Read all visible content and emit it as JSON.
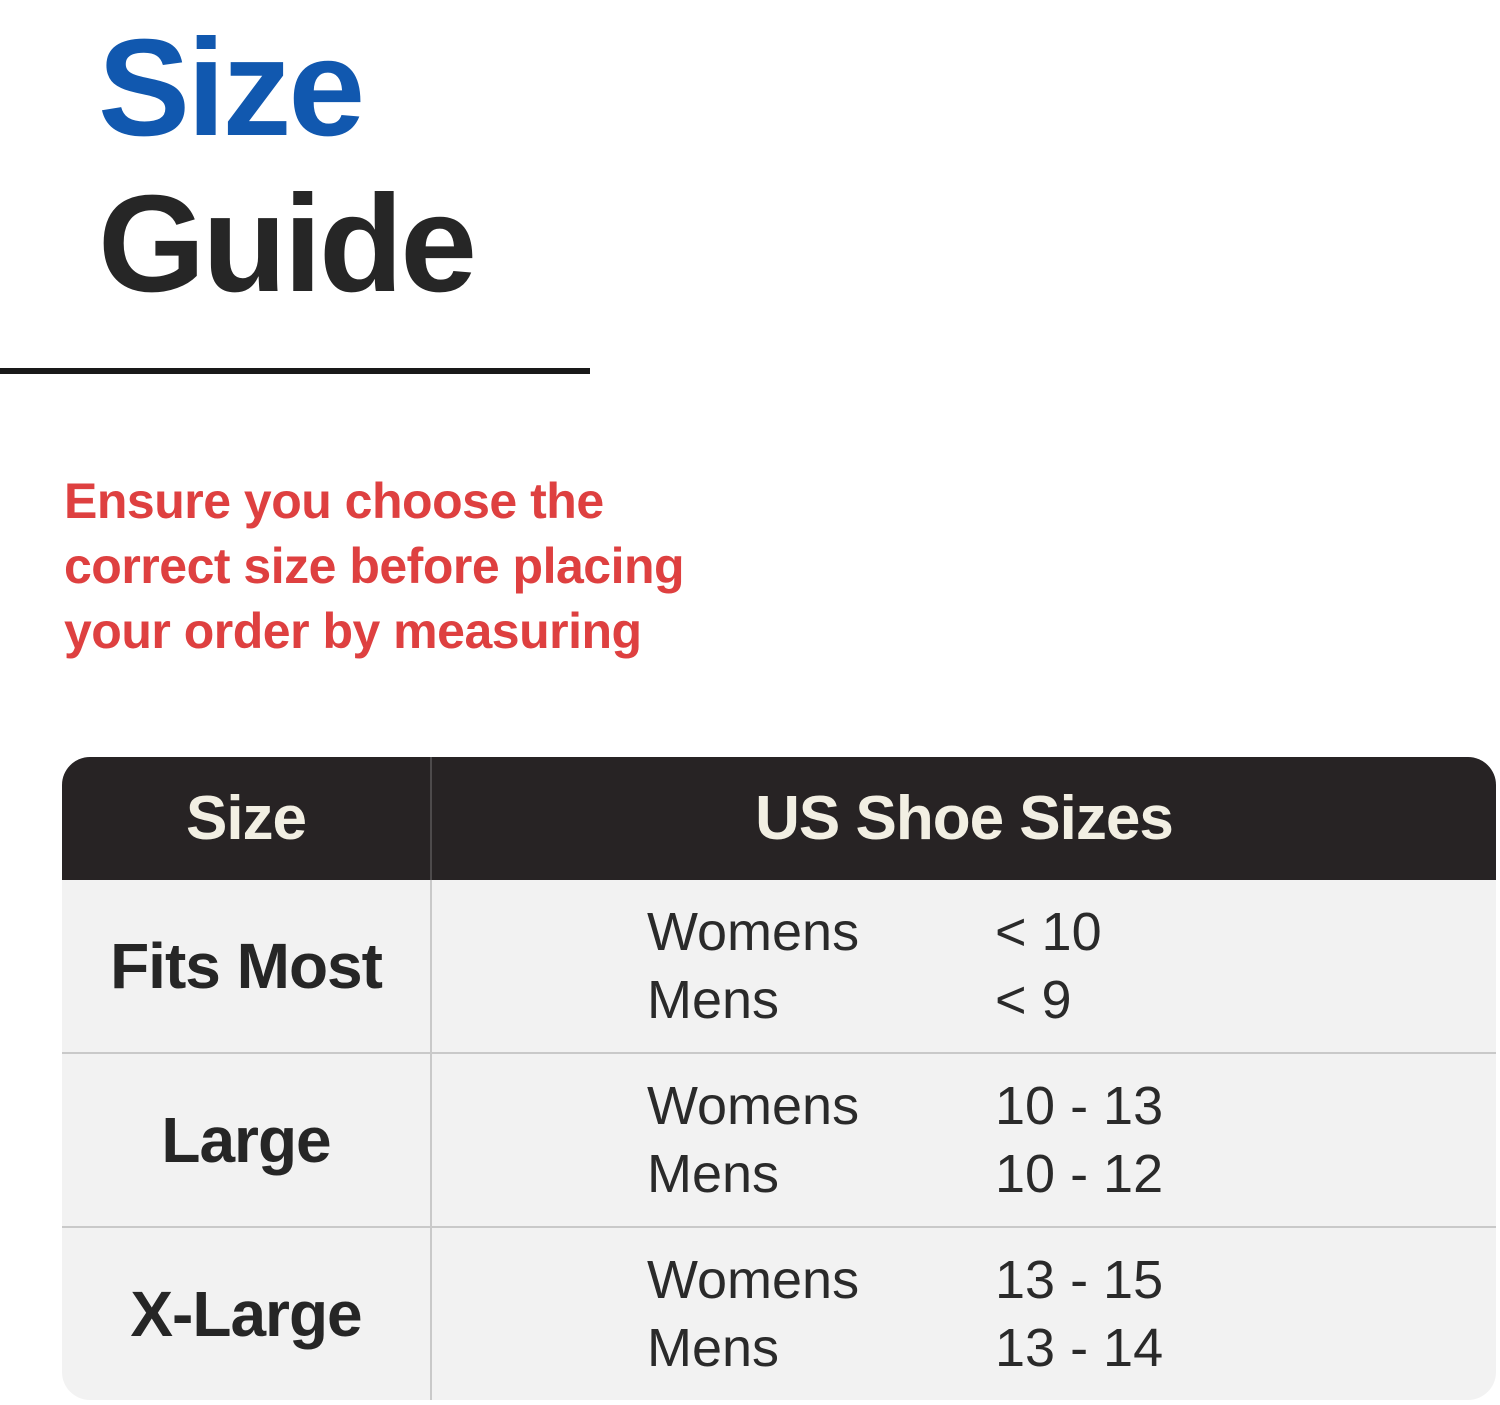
{
  "title": {
    "word1": "Size",
    "word2": "Guide"
  },
  "notice": {
    "lines": [
      "Ensure you choose the",
      "correct size before placing",
      "your order by measuring"
    ]
  },
  "table": {
    "header": {
      "size": "Size",
      "shoe": "US Shoe Sizes"
    },
    "rows": [
      {
        "size": "Fits Most",
        "entries": [
          {
            "gender": "Womens",
            "range": "< 10"
          },
          {
            "gender": "Mens",
            "range": "< 9"
          }
        ]
      },
      {
        "size": "Large",
        "entries": [
          {
            "gender": "Womens",
            "range": "10 - 13"
          },
          {
            "gender": "Mens",
            "range": "10 - 12"
          }
        ]
      },
      {
        "size": "X-Large",
        "entries": [
          {
            "gender": "Womens",
            "range": "13 - 15"
          },
          {
            "gender": "Mens",
            "range": "13 - 14"
          }
        ]
      }
    ]
  },
  "colors": {
    "accent_blue": "#1158AF",
    "title_black": "#262626",
    "rule_dark": "#191919",
    "notice_red": "#DE4040",
    "header_bg": "#272324",
    "header_text": "#F2EFE3",
    "row_bg": "#F2F2F2",
    "divider": "#C9C9C9"
  }
}
